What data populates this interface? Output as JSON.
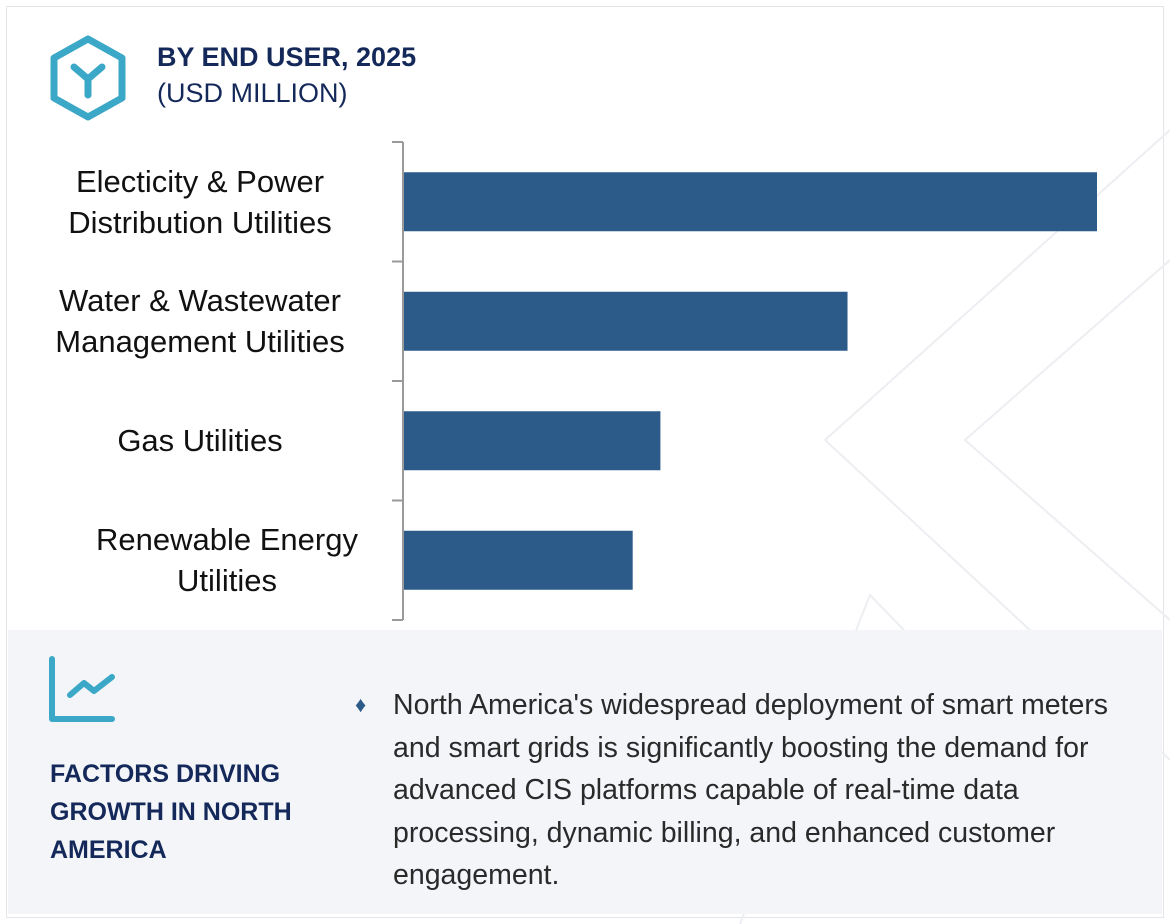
{
  "header": {
    "title": "BY END USER, 2025",
    "subtitle": "(USD MILLION)",
    "logo_icon": "hexagon-y-icon"
  },
  "colors": {
    "bar": "#2c5b8a",
    "accent": "#3aa8c6",
    "heading": "#14295a",
    "panel_bg": "#f3f5f9"
  },
  "chart_data": {
    "type": "bar",
    "orientation": "horizontal",
    "title": "BY END USER, 2025",
    "subtitle": "(USD MILLION)",
    "categories": [
      "Electicity & Power Distribution Utilities",
      "Water & Wastewater Management Utilities",
      "Gas Utilities",
      "Renewable Energy Utilities"
    ],
    "category_lines": [
      [
        "Electicity & Power",
        "Distribution Utilities"
      ],
      [
        "Water & Wastewater",
        "Management Utilities"
      ],
      [
        "Gas Utilities"
      ],
      [
        "Renewable Energy",
        "Utilities"
      ]
    ],
    "values_relative": [
      100,
      64,
      37,
      33
    ],
    "value_axis_shown": false,
    "grid": false
  },
  "factors": {
    "icon": "trend-line-chart-icon",
    "heading": "FACTORS DRIVING GROWTH IN NORTH AMERICA",
    "bullet_icon": "diamond-bullet-icon",
    "text": "North America's widespread deployment of smart meters and smart grids is significantly boosting the demand for advanced CIS platforms capable of real-time data processing, dynamic billing, and enhanced customer engagement."
  }
}
